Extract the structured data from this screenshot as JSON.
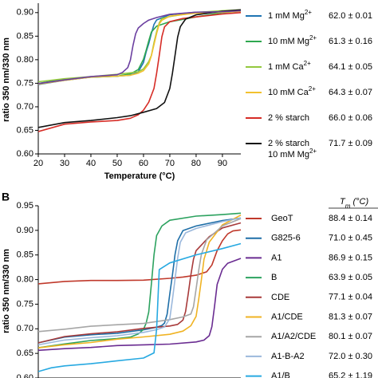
{
  "chart_data": [
    {
      "panel": "",
      "type": "line",
      "xlabel": "Temperature (°C)",
      "ylabel": "ratio 350 nm/330 nm",
      "xlim": [
        20,
        97
      ],
      "ylim": [
        0.6,
        0.92
      ],
      "xticks": [
        "20",
        "30",
        "40",
        "50",
        "60",
        "70",
        "80",
        "90"
      ],
      "yticks": [
        "0.60",
        "0.65",
        "0.70",
        "0.75",
        "0.80",
        "0.85",
        "0.90"
      ],
      "grid": false,
      "legend_placement": "right",
      "value_header": "",
      "series": [
        {
          "name": "1 mM Mg2+",
          "value": "62.0 ± 0.01",
          "color": "#1f74b3",
          "x": [
            20,
            30,
            40,
            50,
            55,
            58,
            60,
            61,
            62,
            63,
            64,
            65,
            70,
            80,
            90,
            97
          ],
          "y": [
            0.748,
            0.757,
            0.762,
            0.765,
            0.768,
            0.775,
            0.795,
            0.815,
            0.835,
            0.855,
            0.875,
            0.885,
            0.895,
            0.9,
            0.903,
            0.905
          ]
        },
        {
          "name": "10 mM Mg2+",
          "value": "61.3 ± 0.16",
          "color": "#2fa84f",
          "x": [
            20,
            30,
            40,
            50,
            55,
            58,
            60,
            61,
            62,
            63,
            65,
            70,
            80,
            90,
            97
          ],
          "y": [
            0.75,
            0.758,
            0.763,
            0.766,
            0.77,
            0.778,
            0.8,
            0.82,
            0.84,
            0.858,
            0.87,
            0.88,
            0.892,
            0.9,
            0.903
          ]
        },
        {
          "name": "1 mM Ca2+",
          "value": "64.1 ± 0.05",
          "color": "#93c83e",
          "x": [
            20,
            30,
            40,
            50,
            55,
            58,
            60,
            62,
            63,
            64,
            65,
            66,
            67,
            70,
            80,
            90,
            97
          ],
          "y": [
            0.752,
            0.76,
            0.765,
            0.768,
            0.771,
            0.775,
            0.78,
            0.795,
            0.81,
            0.835,
            0.86,
            0.878,
            0.887,
            0.893,
            0.9,
            0.903,
            0.905
          ]
        },
        {
          "name": "10 mM Ca2+",
          "value": "64.3 ± 0.07",
          "color": "#f2c12e",
          "x": [
            20,
            30,
            40,
            50,
            55,
            58,
            60,
            62,
            63,
            64,
            65,
            66,
            67,
            70,
            80,
            90,
            97
          ],
          "y": [
            0.749,
            0.757,
            0.762,
            0.765,
            0.768,
            0.772,
            0.778,
            0.792,
            0.808,
            0.832,
            0.856,
            0.875,
            0.885,
            0.892,
            0.898,
            0.902,
            0.904
          ]
        },
        {
          "name": "2 % starch",
          "value": "66.0 ± 0.06",
          "color": "#d62c26",
          "x": [
            20,
            30,
            40,
            50,
            55,
            58,
            60,
            62,
            64,
            65,
            66,
            67,
            68,
            70,
            75,
            80,
            90,
            97
          ],
          "y": [
            0.648,
            0.662,
            0.668,
            0.672,
            0.676,
            0.682,
            0.692,
            0.71,
            0.74,
            0.77,
            0.81,
            0.848,
            0.87,
            0.88,
            0.888,
            0.892,
            0.897,
            0.9
          ]
        },
        {
          "name": "2 % starch\n10 mM Mg2+",
          "value": "71.7 ± 0.09",
          "color": "#111111",
          "x": [
            20,
            30,
            40,
            50,
            55,
            60,
            65,
            68,
            70,
            71,
            72,
            73,
            74,
            76,
            80,
            90,
            97
          ],
          "y": [
            0.655,
            0.667,
            0.672,
            0.676,
            0.68,
            0.688,
            0.697,
            0.71,
            0.74,
            0.77,
            0.81,
            0.848,
            0.87,
            0.885,
            0.895,
            0.902,
            0.905
          ]
        },
        {
          "name": "",
          "value": "",
          "color": "#6b3fa0",
          "x": [
            20,
            30,
            40,
            50,
            52,
            54,
            55,
            56,
            57,
            58,
            60,
            62,
            65,
            70,
            80,
            90,
            97
          ],
          "y": [
            0.75,
            0.758,
            0.763,
            0.768,
            0.772,
            0.782,
            0.8,
            0.83,
            0.855,
            0.868,
            0.878,
            0.885,
            0.89,
            0.896,
            0.9,
            0.903,
            0.905
          ]
        }
      ]
    },
    {
      "panel": "B",
      "type": "line",
      "xlabel": "",
      "ylabel": "ratio 350 nm/330 nm",
      "xlim": [
        20,
        97
      ],
      "ylim": [
        0.6,
        0.95
      ],
      "xticks": [],
      "yticks": [
        "0.60",
        "0.65",
        "0.70",
        "0.75",
        "0.80",
        "0.85",
        "0.90",
        "0.95"
      ],
      "grid": false,
      "legend_placement": "right",
      "value_header": "T_m (°C)",
      "series": [
        {
          "name": "GeoT",
          "value": "88.4 ± 0.14",
          "color": "#c0392b",
          "x": [
            20,
            30,
            40,
            50,
            60,
            70,
            75,
            80,
            84,
            86,
            88,
            90,
            92,
            94,
            97
          ],
          "y": [
            0.792,
            0.797,
            0.797,
            0.798,
            0.8,
            0.802,
            0.804,
            0.808,
            0.815,
            0.83,
            0.86,
            0.88,
            0.893,
            0.898,
            0.902
          ]
        },
        {
          "name": "G825-6",
          "value": "71.0 ± 0.45",
          "color": "#1f6fa8",
          "x": [
            20,
            30,
            40,
            50,
            60,
            65,
            67,
            68,
            69,
            70,
            71,
            72,
            73,
            75,
            80,
            90,
            97
          ],
          "y": [
            0.672,
            0.682,
            0.688,
            0.692,
            0.697,
            0.702,
            0.706,
            0.712,
            0.73,
            0.77,
            0.81,
            0.85,
            0.88,
            0.9,
            0.91,
            0.92,
            0.925
          ]
        },
        {
          "name": "A1",
          "value": "86.9 ± 0.15",
          "color": "#6a2c91",
          "x": [
            20,
            30,
            40,
            50,
            60,
            70,
            80,
            83,
            85,
            86,
            87,
            88,
            90,
            92,
            97
          ],
          "y": [
            0.655,
            0.66,
            0.663,
            0.665,
            0.667,
            0.67,
            0.673,
            0.676,
            0.685,
            0.705,
            0.745,
            0.79,
            0.82,
            0.832,
            0.842
          ]
        },
        {
          "name": "B",
          "value": "63.9 ± 0.05",
          "color": "#2ca25f",
          "x": [
            20,
            30,
            40,
            50,
            55,
            58,
            60,
            61,
            62,
            63,
            64,
            65,
            67,
            70,
            80,
            90,
            97
          ],
          "y": [
            0.662,
            0.67,
            0.675,
            0.68,
            0.684,
            0.69,
            0.7,
            0.71,
            0.735,
            0.79,
            0.85,
            0.89,
            0.91,
            0.92,
            0.928,
            0.933,
            0.936
          ]
        },
        {
          "name": "CDE",
          "value": "77.1 ± 0.04",
          "color": "#a83a3a",
          "x": [
            20,
            30,
            40,
            50,
            60,
            70,
            73,
            75,
            76,
            77,
            78,
            79,
            80,
            85,
            90,
            97
          ],
          "y": [
            0.672,
            0.683,
            0.69,
            0.695,
            0.7,
            0.705,
            0.71,
            0.718,
            0.735,
            0.77,
            0.81,
            0.84,
            0.86,
            0.888,
            0.905,
            0.915
          ]
        },
        {
          "name": "A1/CDE",
          "value": "81.3 ± 0.07",
          "color": "#f0b323",
          "x": [
            20,
            30,
            40,
            50,
            60,
            70,
            75,
            78,
            80,
            81,
            82,
            83,
            85,
            90,
            97
          ],
          "y": [
            0.66,
            0.668,
            0.673,
            0.678,
            0.683,
            0.69,
            0.696,
            0.705,
            0.725,
            0.76,
            0.8,
            0.84,
            0.875,
            0.91,
            0.93
          ]
        },
        {
          "name": "A1/A2/CDE",
          "value": "80.1 ± 0.07",
          "color": "#a6a6a6",
          "x": [
            20,
            30,
            40,
            50,
            60,
            70,
            75,
            78,
            79,
            80,
            81,
            82,
            84,
            90,
            97
          ],
          "y": [
            0.695,
            0.7,
            0.704,
            0.708,
            0.712,
            0.718,
            0.723,
            0.73,
            0.745,
            0.78,
            0.82,
            0.85,
            0.88,
            0.91,
            0.925
          ]
        },
        {
          "name": "A1-B-A2",
          "value": "72.0 ± 0.30",
          "color": "#9bb8dc",
          "x": [
            20,
            30,
            40,
            50,
            60,
            65,
            68,
            70,
            71,
            72,
            73,
            74,
            76,
            80,
            90,
            97
          ],
          "y": [
            0.668,
            0.676,
            0.682,
            0.687,
            0.692,
            0.697,
            0.704,
            0.72,
            0.76,
            0.8,
            0.845,
            0.875,
            0.895,
            0.905,
            0.918,
            0.925
          ]
        },
        {
          "name": "A1/B",
          "value": "65.2 ± 1.19",
          "color": "#27a9e1",
          "x": [
            20,
            25,
            30,
            40,
            50,
            60,
            64,
            65,
            66,
            70,
            80,
            90,
            97
          ],
          "y": [
            0.612,
            0.62,
            0.625,
            0.63,
            0.634,
            0.64,
            0.65,
            0.7,
            0.82,
            0.835,
            0.85,
            0.862,
            0.872
          ]
        }
      ]
    }
  ]
}
